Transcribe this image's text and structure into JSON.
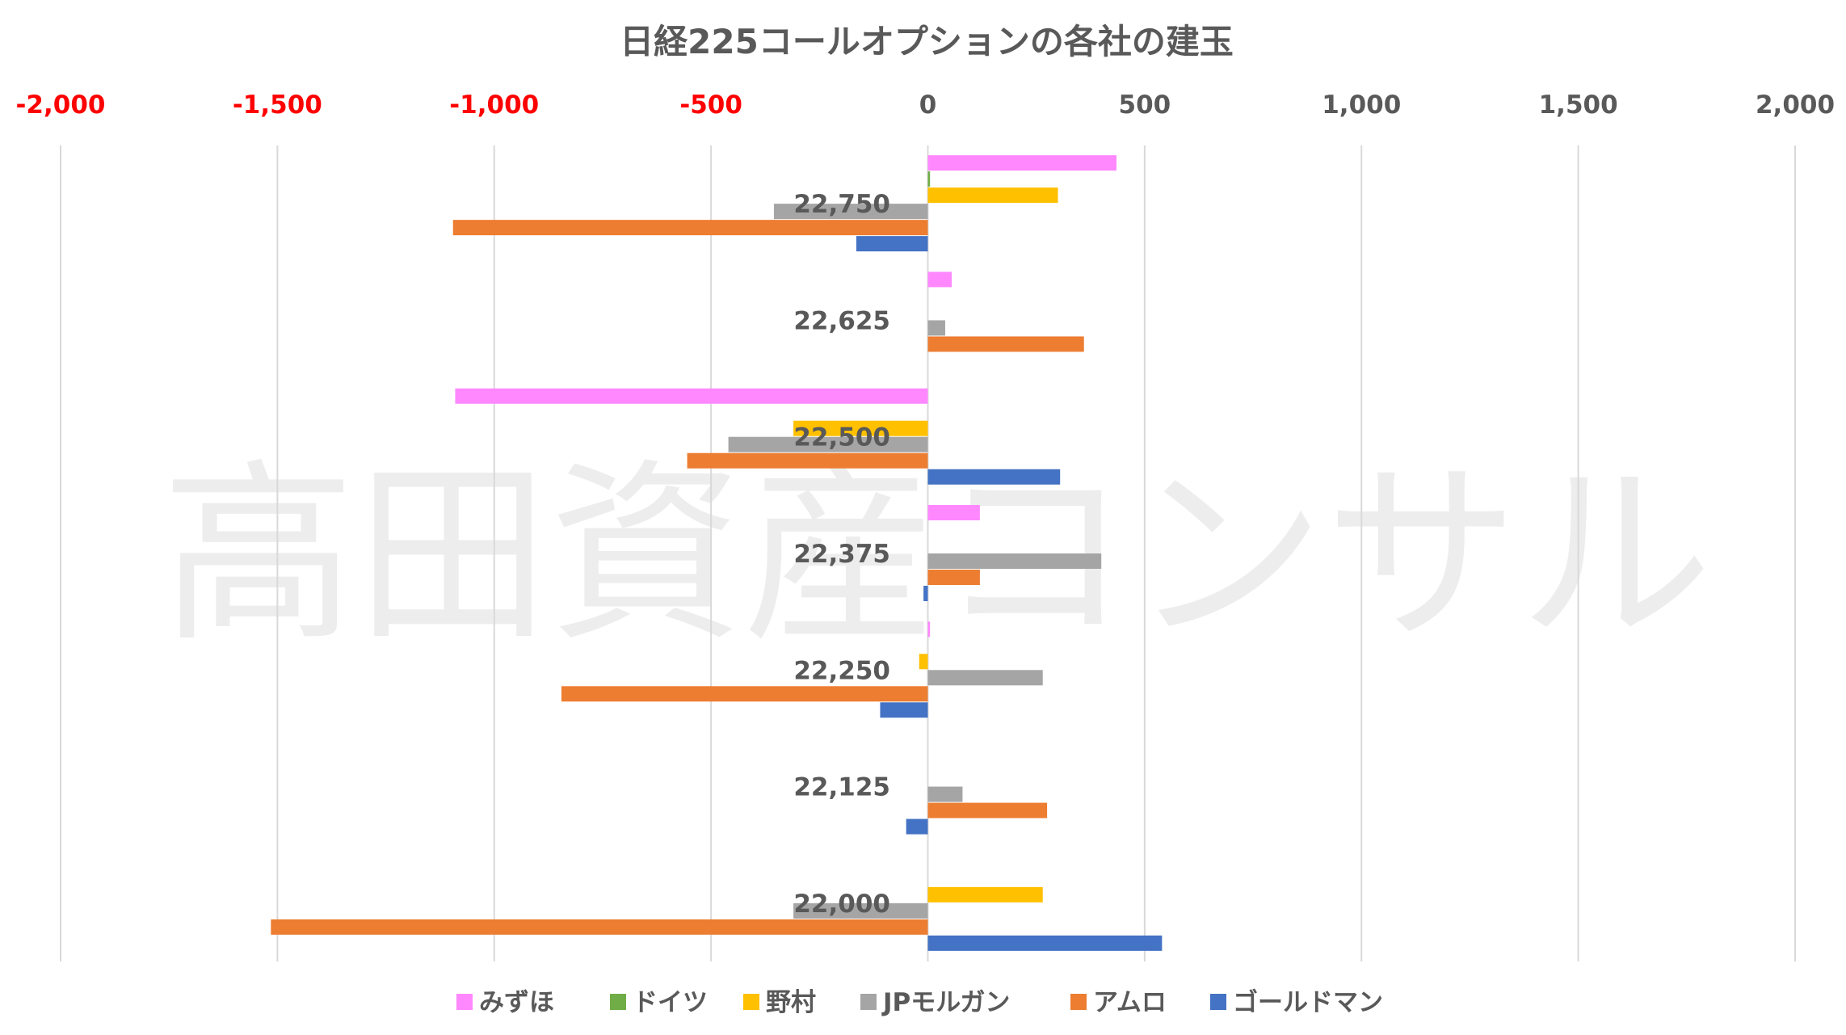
{
  "chart_data": {
    "type": "bar",
    "orientation": "horizontal",
    "title": "日経225コールオプションの各社の建玉",
    "watermark": "高田資産コンサル",
    "xlim": [
      -2000,
      2000
    ],
    "x_ticks": [
      {
        "value": -2000,
        "label": "-2,000",
        "color": "#ff0000"
      },
      {
        "value": -1500,
        "label": "-1,500",
        "color": "#ff0000"
      },
      {
        "value": -1000,
        "label": "-1,000",
        "color": "#ff0000"
      },
      {
        "value": -500,
        "label": "-500",
        "color": "#ff0000"
      },
      {
        "value": 0,
        "label": "0",
        "color": "#595959"
      },
      {
        "value": 500,
        "label": "500",
        "color": "#595959"
      },
      {
        "value": 1000,
        "label": "1,000",
        "color": "#595959"
      },
      {
        "value": 1500,
        "label": "1,500",
        "color": "#595959"
      },
      {
        "value": 2000,
        "label": "2,000",
        "color": "#595959"
      }
    ],
    "categories": [
      "22,750",
      "22,625",
      "22,500",
      "22,375",
      "22,250",
      "22,125",
      "22,000"
    ],
    "grid": true,
    "legend_position": "bottom",
    "series": [
      {
        "name": "みずほ",
        "color": "#ff88ff",
        "values": [
          435,
          55,
          -1090,
          120,
          5,
          0,
          0
        ]
      },
      {
        "name": "ドイツ",
        "color": "#70ad47",
        "values": [
          5,
          0,
          0,
          0,
          0,
          0,
          0
        ]
      },
      {
        "name": "野村",
        "color": "#ffc000",
        "values": [
          300,
          0,
          -310,
          0,
          -20,
          0,
          265
        ]
      },
      {
        "name": "JPモルガン",
        "color": "#a5a5a5",
        "values": [
          -355,
          40,
          -460,
          400,
          265,
          80,
          -310
        ]
      },
      {
        "name": "アムロ",
        "color": "#ed7d31",
        "values": [
          -1095,
          360,
          -555,
          120,
          -845,
          275,
          -1515
        ]
      },
      {
        "name": "ゴールドマン",
        "color": "#4472c4",
        "values": [
          -165,
          0,
          305,
          -10,
          -110,
          -50,
          540
        ]
      }
    ]
  }
}
